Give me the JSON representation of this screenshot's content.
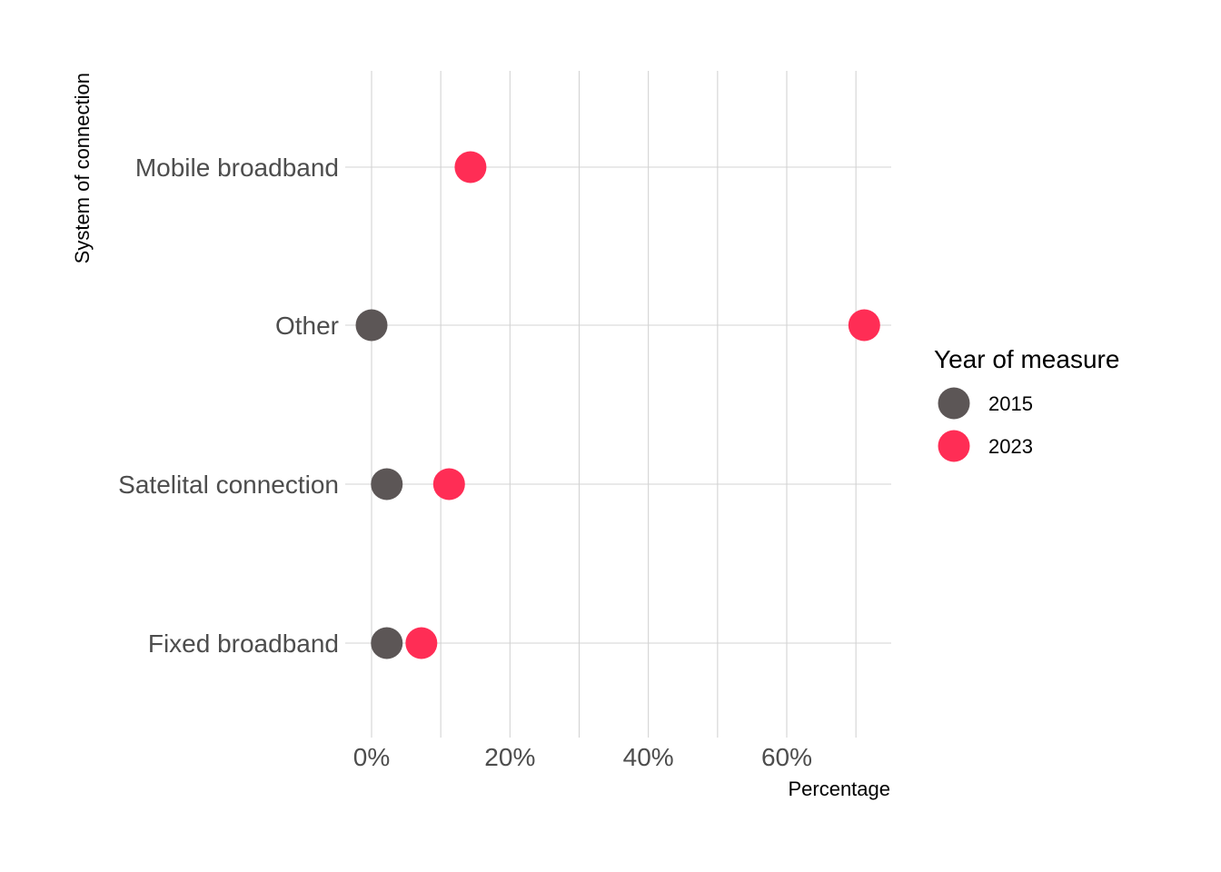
{
  "chart_data": {
    "type": "scatter",
    "xlabel": "Percentage",
    "ylabel": "System of connection",
    "categories": [
      "Fixed broadband",
      "Satelital connection",
      "Other",
      "Mobile broadband"
    ],
    "xlim": [
      0,
      0.75
    ],
    "x_ticks": [
      0,
      0.2,
      0.4,
      0.6
    ],
    "x_tick_labels": [
      "0%",
      "20%",
      "40%",
      "60%"
    ],
    "grid": true,
    "legend": {
      "title": "Year of measure",
      "position": "right",
      "entries": [
        "2015",
        "2023"
      ]
    },
    "series": [
      {
        "name": "2015",
        "color": "#5c5656",
        "points": [
          {
            "category": "Fixed broadband",
            "value": 0.022
          },
          {
            "category": "Satelital connection",
            "value": 0.022
          },
          {
            "category": "Other",
            "value": 0.0
          }
        ]
      },
      {
        "name": "2023",
        "color": "#ff2d55",
        "points": [
          {
            "category": "Fixed broadband",
            "value": 0.072
          },
          {
            "category": "Satelital connection",
            "value": 0.112
          },
          {
            "category": "Other",
            "value": 0.712
          },
          {
            "category": "Mobile broadband",
            "value": 0.143
          }
        ]
      }
    ]
  }
}
